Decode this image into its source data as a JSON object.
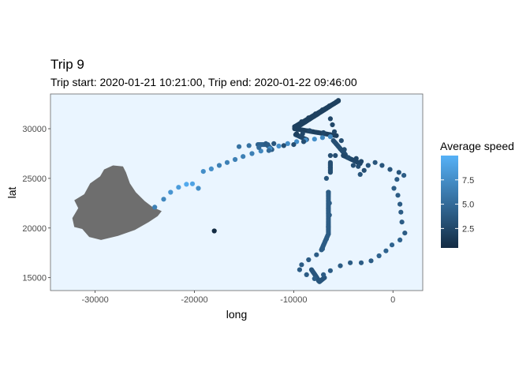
{
  "chart_data": {
    "type": "scatter",
    "title": "Trip 9",
    "subtitle": "Trip start: 2020-01-21 10:21:00, Trip end: 2020-01-22 09:46:00",
    "xlabel": "long",
    "ylabel": "lat",
    "xlim": [
      -34500,
      3000
    ],
    "ylim": [
      13700,
      33500
    ],
    "x_ticks": [
      -30000,
      -20000,
      -10000,
      0
    ],
    "x_tick_labels": [
      "-30000",
      "-20000",
      "-10000",
      "0"
    ],
    "y_ticks": [
      15000,
      20000,
      25000,
      30000
    ],
    "y_tick_labels": [
      "15000",
      "20000",
      "25000",
      "30000"
    ],
    "grid": false,
    "panel_background": "#eaf5ff",
    "panel_border": "#666666",
    "land_color": "#6e6e6e",
    "legend": {
      "title": "Average speed",
      "position": "right",
      "breaks": [
        2.5,
        5.0,
        7.5
      ],
      "break_labels": [
        "2.5",
        "5.0",
        "7.5"
      ],
      "range": [
        0.5,
        10
      ],
      "low_color": "#132b43",
      "high_color": "#56b1f7"
    },
    "land_polygon": [
      [
        -28200,
        26300
      ],
      [
        -27200,
        26200
      ],
      [
        -26900,
        25600
      ],
      [
        -26500,
        24500
      ],
      [
        -25900,
        23600
      ],
      [
        -25000,
        22700
      ],
      [
        -24200,
        22100
      ],
      [
        -23300,
        21700
      ],
      [
        -23700,
        21200
      ],
      [
        -24600,
        20600
      ],
      [
        -26000,
        19800
      ],
      [
        -27700,
        19200
      ],
      [
        -29400,
        18800
      ],
      [
        -30600,
        19100
      ],
      [
        -31300,
        19900
      ],
      [
        -32100,
        20100
      ],
      [
        -32300,
        21000
      ],
      [
        -31700,
        22000
      ],
      [
        -32100,
        22800
      ],
      [
        -31100,
        23400
      ],
      [
        -30500,
        24500
      ],
      [
        -29500,
        25200
      ],
      [
        -29100,
        25900
      ]
    ],
    "series": [
      {
        "points": [
          [
            -18000,
            19700,
            0.5
          ],
          [
            -24000,
            22100,
            6.5
          ],
          [
            -23100,
            22900,
            7.0
          ],
          [
            -22400,
            23600,
            8.0
          ],
          [
            -21600,
            24100,
            8.5
          ],
          [
            -20800,
            24400,
            9.5
          ],
          [
            -20200,
            24450,
            9.0
          ],
          [
            -19600,
            24000,
            7.5
          ],
          [
            -19100,
            25700,
            7.5
          ],
          [
            -18300,
            25950,
            7.5
          ],
          [
            -17500,
            26300,
            6.5
          ],
          [
            -16700,
            26600,
            6.5
          ],
          [
            -15900,
            26900,
            6.5
          ],
          [
            -15100,
            27200,
            6.5
          ],
          [
            -14200,
            27500,
            6.5
          ],
          [
            -13300,
            27750,
            7.0
          ],
          [
            -12400,
            28000,
            7.5
          ],
          [
            -11500,
            28250,
            7.5
          ],
          [
            -10600,
            28500,
            7.5
          ],
          [
            -9700,
            28700,
            7.5
          ],
          [
            -8800,
            28850,
            7.5
          ],
          [
            -7900,
            28950,
            7.5
          ],
          [
            -7100,
            29100,
            7.0
          ],
          [
            -6300,
            29200,
            7.0
          ],
          [
            -15500,
            28200,
            5.5
          ],
          [
            -14500,
            28300,
            5.5
          ],
          [
            -13500,
            28100,
            5.0
          ],
          [
            -12500,
            27800,
            5.0
          ],
          [
            -12000,
            28500,
            3.5
          ],
          [
            -11000,
            28300,
            3.0
          ],
          [
            -10000,
            28400,
            3.0
          ],
          [
            -9000,
            28700,
            3.0
          ],
          [
            -9900,
            30200,
            2.0
          ],
          [
            -9700,
            29500,
            2.0
          ],
          [
            -9200,
            30700,
            2.0
          ],
          [
            -8500,
            31100,
            2.0
          ],
          [
            -7800,
            31500,
            2.0
          ],
          [
            -7100,
            31900,
            2.0
          ],
          [
            -6400,
            32300,
            2.0
          ],
          [
            -5700,
            32700,
            2.0
          ],
          [
            -5500,
            32850,
            2.0
          ],
          [
            -6300,
            31000,
            2.5
          ],
          [
            -6100,
            30400,
            2.5
          ],
          [
            -5900,
            29700,
            2.5
          ],
          [
            -7000,
            29600,
            2.5
          ],
          [
            -8400,
            29800,
            2.5
          ],
          [
            -9100,
            29500,
            2.5
          ],
          [
            -5200,
            28800,
            3.0
          ],
          [
            -4900,
            27900,
            3.0
          ],
          [
            -5800,
            27300,
            3.0
          ],
          [
            -6300,
            27300,
            3.0
          ],
          [
            -4500,
            27100,
            3.0
          ],
          [
            -3700,
            27000,
            2.5
          ],
          [
            -3200,
            26700,
            2.5
          ],
          [
            -4000,
            26300,
            3.0
          ],
          [
            -3500,
            26200,
            3.0
          ],
          [
            -6700,
            25000,
            3.5
          ],
          [
            -6500,
            23600,
            4.0
          ],
          [
            -6400,
            22500,
            4.0
          ],
          [
            -6400,
            21300,
            4.0
          ],
          [
            -6500,
            20100,
            4.0
          ],
          [
            -6700,
            18900,
            4.0
          ],
          [
            -7100,
            17900,
            4.0
          ],
          [
            -7700,
            17300,
            4.0
          ],
          [
            -8500,
            16800,
            4.0
          ],
          [
            -9200,
            16300,
            4.0
          ],
          [
            -9400,
            15800,
            4.0
          ],
          [
            -8700,
            15300,
            4.0
          ],
          [
            -7900,
            14900,
            4.0
          ],
          [
            -7500,
            14700,
            3.5
          ],
          [
            -7000,
            15300,
            4.0
          ],
          [
            -6300,
            15700,
            4.0
          ],
          [
            -5300,
            16200,
            4.0
          ],
          [
            -4300,
            16500,
            4.0
          ],
          [
            -3200,
            16500,
            4.0
          ],
          [
            -2200,
            16700,
            4.0
          ],
          [
            -1400,
            17200,
            4.5
          ],
          [
            -700,
            17700,
            4.5
          ],
          [
            -100,
            18300,
            4.5
          ],
          [
            700,
            18800,
            4.5
          ],
          [
            1200,
            19500,
            4.0
          ],
          [
            900,
            20600,
            4.0
          ],
          [
            800,
            21600,
            4.0
          ],
          [
            700,
            22400,
            4.0
          ],
          [
            500,
            23300,
            4.0
          ],
          [
            100,
            24000,
            4.0
          ],
          [
            400,
            24900,
            4.0
          ],
          [
            1100,
            25300,
            4.0
          ],
          [
            600,
            25600,
            3.5
          ],
          [
            -300,
            25900,
            3.5
          ],
          [
            -1100,
            26300,
            3.5
          ],
          [
            -1800,
            26600,
            3.5
          ],
          [
            -2500,
            26300,
            3.5
          ],
          [
            -2900,
            25800,
            3.0
          ],
          [
            -3300,
            25400,
            3.5
          ]
        ],
        "segments": [
          [
            -9900,
            30200,
            -5500,
            32800,
            2.0
          ],
          [
            -5500,
            32800,
            -9900,
            30000,
            2.0
          ],
          [
            -9900,
            30000,
            -5700,
            29300,
            2.0
          ],
          [
            -9800,
            29400,
            -8700,
            28900,
            2.5
          ],
          [
            -6000,
            28800,
            -4800,
            27400,
            3.0
          ],
          [
            -5000,
            27300,
            -3300,
            26500,
            2.5
          ],
          [
            -6300,
            26600,
            -6300,
            25600,
            3.0
          ],
          [
            -6500,
            23600,
            -6500,
            19400,
            4.0
          ],
          [
            -6500,
            19400,
            -7200,
            17800,
            4.0
          ],
          [
            -8200,
            15800,
            -7400,
            14600,
            3.5
          ],
          [
            -7400,
            14600,
            -6900,
            15000,
            3.5
          ],
          [
            -13600,
            28400,
            -12600,
            28400,
            4.5
          ],
          [
            -12800,
            28500,
            -12200,
            27900,
            4.0
          ]
        ]
      }
    ]
  }
}
